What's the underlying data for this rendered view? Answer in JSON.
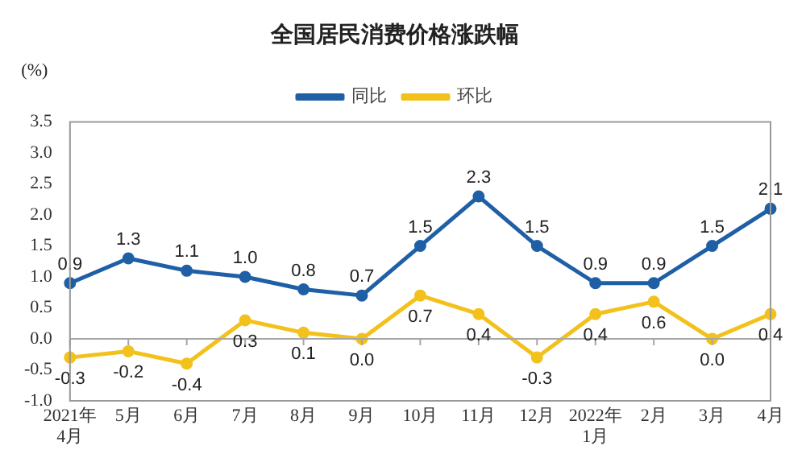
{
  "chart_data": {
    "type": "line",
    "title": "全国居民消费价格涨跌幅",
    "ylabel": "(%)",
    "categories": [
      "2021年\n4月",
      "5月",
      "6月",
      "7月",
      "8月",
      "9月",
      "10月",
      "11月",
      "12月",
      "2022年\n1月",
      "2月",
      "3月",
      "4月"
    ],
    "series": [
      {
        "name": "同比",
        "color": "#1f5fa6",
        "values": [
          0.9,
          1.3,
          1.1,
          1.0,
          0.8,
          0.7,
          1.5,
          2.3,
          1.5,
          0.9,
          0.9,
          1.5,
          2.1
        ],
        "value_labels": [
          "0.9",
          "1.3",
          "1.1",
          "1.0",
          "0.8",
          "0.7",
          "1.5",
          "2.3",
          "1.5",
          "0.9",
          "0.9",
          "1.5",
          "2.1"
        ]
      },
      {
        "name": "环比",
        "color": "#f2c11c",
        "values": [
          -0.3,
          -0.2,
          -0.4,
          0.3,
          0.1,
          0.0,
          0.7,
          0.4,
          -0.3,
          0.4,
          0.6,
          0.0,
          0.4
        ],
        "value_labels": [
          "-0.3",
          "-0.2",
          "-0.4",
          "0.3",
          "0.1",
          "0.0",
          "0.7",
          "0.4",
          "-0.3",
          "0.4",
          "0.6",
          "0.0",
          "0.4"
        ]
      }
    ],
    "ylim": [
      -1.0,
      3.5
    ],
    "yticks": [
      {
        "value": -1,
        "label": "-1.0"
      },
      -0.5,
      {
        "value": 0,
        "label": "0.0"
      },
      0.5,
      {
        "value": 1,
        "label": "1.0"
      },
      1.5,
      {
        "value": 2,
        "label": "2.0"
      },
      2.5,
      {
        "value": 3,
        "label": "3.0"
      },
      3.5
    ],
    "ref_lines": [
      {
        "axis": "y",
        "value": 0,
        "color": "#a6a6a6"
      }
    ],
    "legend": "top",
    "marker": "circle",
    "line_style": "solid",
    "grid": false
  }
}
